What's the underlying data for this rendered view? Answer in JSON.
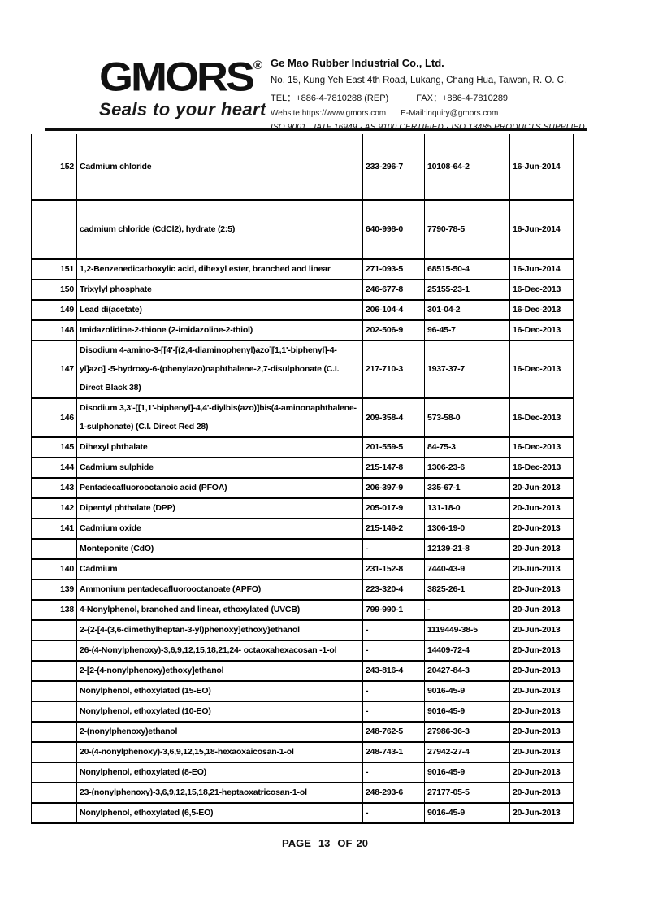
{
  "header": {
    "logo_text": "GMORS",
    "registered_mark": "®",
    "tagline": "Seals to your heart",
    "company_name": "Ge Mao Rubber Industrial Co., Ltd.",
    "address": "No. 15, Kung Yeh East 4th Road, Lukang, Chang Hua, Taiwan, R. O. C.",
    "tel": "TEL：+886-4-7810288 (REP)",
    "fax": "FAX：+886-4-7810289",
    "website": "Website:https://www.gmors.com",
    "email": "E-Mail:inquiry@gmors.com",
    "certifications": "ISO 9001 · IATF 16949 · AS 9100 CERTIFIED · ISO 13485 PRODUCTS SUPPLIED"
  },
  "table": {
    "rows": [
      {
        "no": "152",
        "name": "Cadmium chloride",
        "ec": "233-296-7",
        "cas": "10108-64-2",
        "date": "16-Jun-2014"
      },
      {
        "no": "",
        "name": "cadmium chloride (CdCl2), hydrate (2:5)",
        "ec": "640-998-0",
        "cas": "7790-78-5",
        "date": "16-Jun-2014"
      },
      {
        "no": "151",
        "name": "1,2-Benzenedicarboxylic acid, dihexyl ester, branched and linear",
        "ec": "271-093-5",
        "cas": "68515-50-4",
        "date": "16-Jun-2014"
      },
      {
        "no": "150",
        "name": "Trixylyl phosphate",
        "ec": "246-677-8",
        "cas": "25155-23-1",
        "date": "16-Dec-2013"
      },
      {
        "no": "149",
        "name": "Lead di(acetate)",
        "ec": "206-104-4",
        "cas": "301-04-2",
        "date": "16-Dec-2013"
      },
      {
        "no": "148",
        "name": "Imidazolidine-2-thione (2-imidazoline-2-thiol)",
        "ec": "202-506-9",
        "cas": "96-45-7",
        "date": "16-Dec-2013"
      },
      {
        "no": "147",
        "name": "Disodium 4-amino-3-[[4'-[(2,4-diaminophenyl)azo][1,1'-biphenyl]-4-yl]azo] -5-hydroxy-6-(phenylazo)naphthalene-2,7-disulphonate (C.I. Direct Black 38)",
        "ec": "217-710-3",
        "cas": "1937-37-7",
        "date": "16-Dec-2013"
      },
      {
        "no": "146",
        "name": "Disodium 3,3'-[[1,1'-biphenyl]-4,4'-diylbis(azo)]bis(4-aminonaphthalene-1-sulphonate) (C.I. Direct Red 28)",
        "ec": "209-358-4",
        "cas": "573-58-0",
        "date": "16-Dec-2013"
      },
      {
        "no": "145",
        "name": "Dihexyl phthalate",
        "ec": "201-559-5",
        "cas": "84-75-3",
        "date": "16-Dec-2013"
      },
      {
        "no": "144",
        "name": "Cadmium sulphide",
        "ec": "215-147-8",
        "cas": "1306-23-6",
        "date": "16-Dec-2013"
      },
      {
        "no": "143",
        "name": "Pentadecafluorooctanoic acid (PFOA)",
        "ec": "206-397-9",
        "cas": "335-67-1",
        "date": "20-Jun-2013"
      },
      {
        "no": "142",
        "name": "Dipentyl phthalate (DPP)",
        "ec": "205-017-9",
        "cas": "131-18-0",
        "date": "20-Jun-2013"
      },
      {
        "no": "141",
        "name": "Cadmium oxide",
        "ec": "215-146-2",
        "cas": "1306-19-0",
        "date": "20-Jun-2013"
      },
      {
        "no": "",
        "name": "Monteponite (CdO)",
        "ec": "-",
        "cas": "12139-21-8",
        "date": "20-Jun-2013"
      },
      {
        "no": "140",
        "name": "Cadmium",
        "ec": "231-152-8",
        "cas": "7440-43-9",
        "date": "20-Jun-2013"
      },
      {
        "no": "139",
        "name": "Ammonium pentadecafluorooctanoate (APFO)",
        "ec": "223-320-4",
        "cas": "3825-26-1",
        "date": "20-Jun-2013"
      },
      {
        "no": "138",
        "name": "4-Nonylphenol, branched and linear, ethoxylated (UVCB)",
        "ec": "799-990-1",
        "cas": "-",
        "date": "20-Jun-2013"
      },
      {
        "no": "",
        "name": "2-{2-[4-(3,6-dimethylheptan-3-yl)phenoxy]ethoxy}ethanol",
        "ec": "-",
        "cas": "1119449-38-5",
        "date": "20-Jun-2013"
      },
      {
        "no": "",
        "name": "26-(4-Nonylphenoxy)-3,6,9,12,15,18,21,24- octaoxahexacosan -1-ol",
        "ec": "-",
        "cas": "14409-72-4",
        "date": "20-Jun-2013"
      },
      {
        "no": "",
        "name": "2-[2-(4-nonylphenoxy)ethoxy]ethanol",
        "ec": "243-816-4",
        "cas": "20427-84-3",
        "date": "20-Jun-2013"
      },
      {
        "no": "",
        "name": "Nonylphenol, ethoxylated (15-EO)",
        "ec": "-",
        "cas": "9016-45-9",
        "date": "20-Jun-2013"
      },
      {
        "no": "",
        "name": "Nonylphenol, ethoxylated (10-EO)",
        "ec": "-",
        "cas": "9016-45-9",
        "date": "20-Jun-2013"
      },
      {
        "no": "",
        "name": "2-(nonylphenoxy)ethanol",
        "ec": "248-762-5",
        "cas": "27986-36-3",
        "date": "20-Jun-2013"
      },
      {
        "no": "",
        "name": "20-(4-nonylphenoxy)-3,6,9,12,15,18-hexaoxaicosan-1-ol",
        "ec": "248-743-1",
        "cas": "27942-27-4",
        "date": "20-Jun-2013"
      },
      {
        "no": "",
        "name": "Nonylphenol, ethoxylated (8-EO)",
        "ec": "-",
        "cas": "9016-45-9",
        "date": "20-Jun-2013"
      },
      {
        "no": "",
        "name": "23-(nonylphenoxy)-3,6,9,12,15,18,21-heptaoxatricosan-1-ol",
        "ec": "248-293-6",
        "cas": "27177-05-5",
        "date": "20-Jun-2013"
      },
      {
        "no": "",
        "name": "Nonylphenol, ethoxylated (6,5-EO)",
        "ec": "-",
        "cas": "9016-45-9",
        "date": "20-Jun-2013"
      }
    ]
  },
  "footer": {
    "page_label": "PAGE",
    "page_number": "13",
    "of_label": "OF",
    "total_pages": "20"
  },
  "colors": {
    "text": "#000000",
    "border": "#000000",
    "background": "#ffffff"
  }
}
